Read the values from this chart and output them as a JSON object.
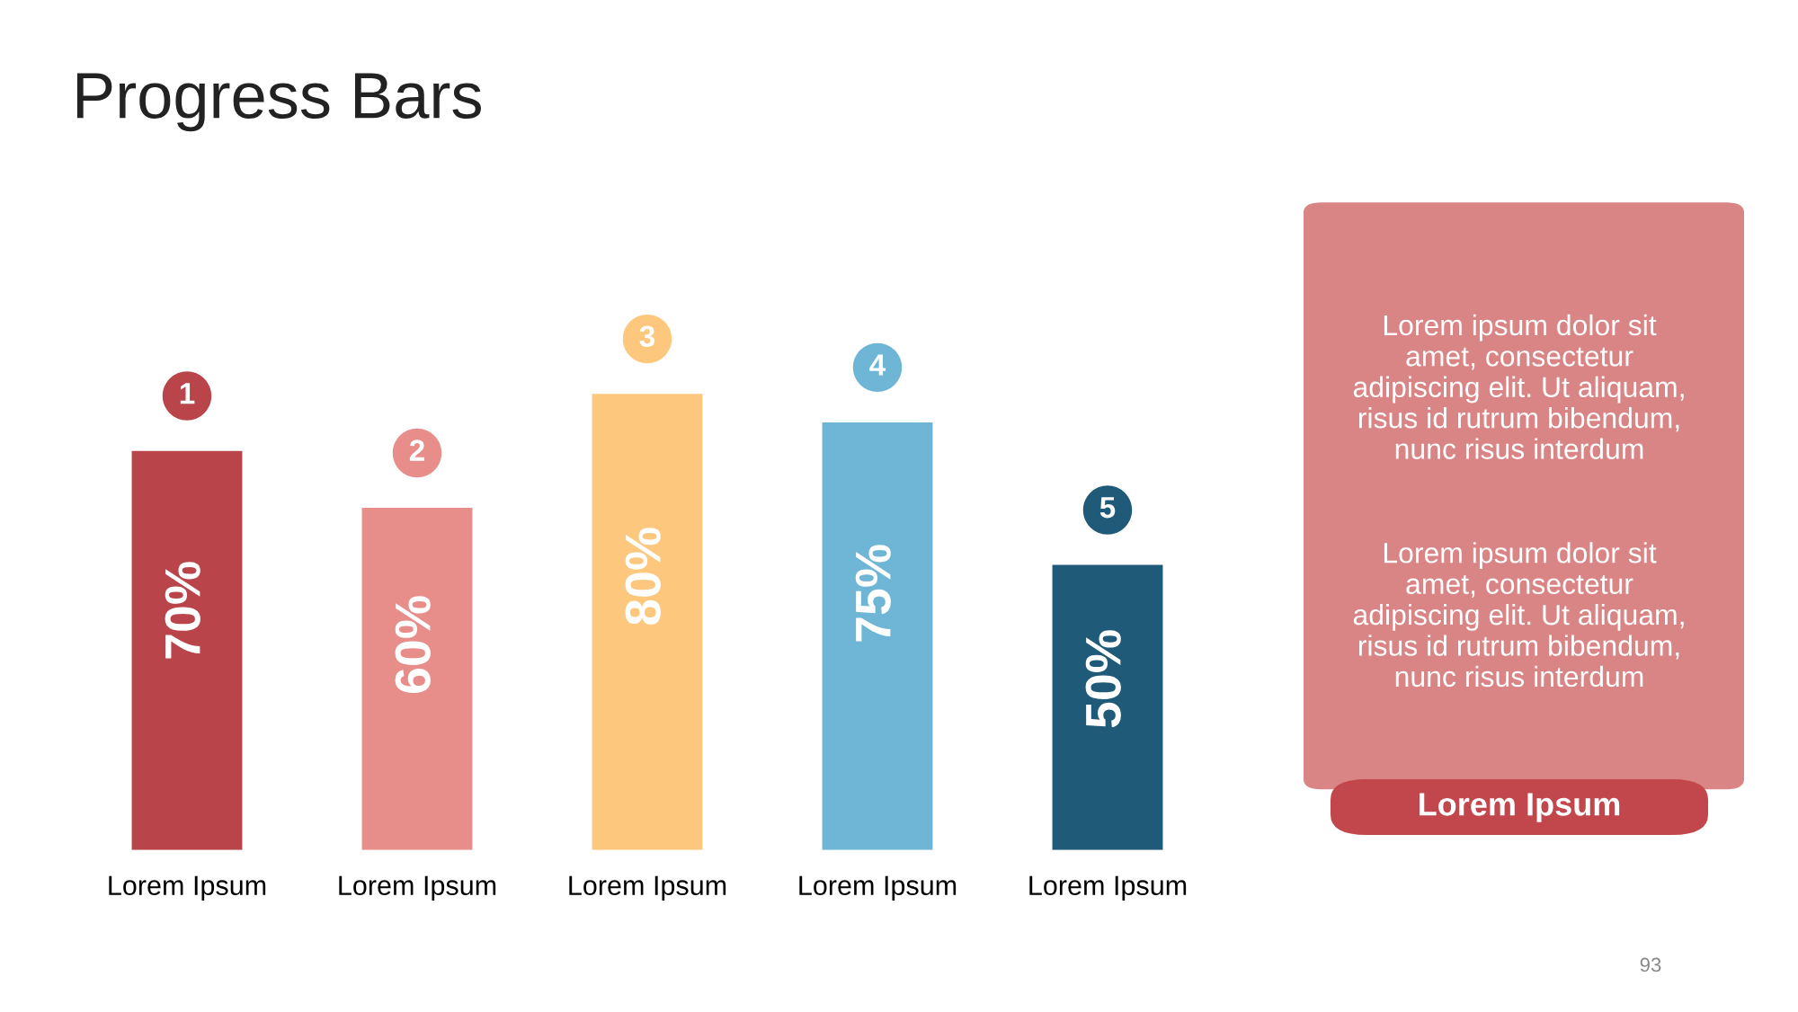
{
  "chart_data": {
    "type": "bar",
    "title": "Progress Bars",
    "categories": [
      "Lorem Ipsum",
      "Lorem Ipsum",
      "Lorem Ipsum",
      "Lorem Ipsum",
      "Lorem Ipsum"
    ],
    "values": [
      70,
      60,
      80,
      75,
      50
    ],
    "colors": [
      "#b9444a",
      "#e88e8a",
      "#fdc87e",
      "#6fb6d6",
      "#1f5a78"
    ],
    "value_labels": [
      "70%",
      "60%",
      "80%",
      "75%",
      "50%"
    ],
    "annotations": [
      "1",
      "2",
      "3",
      "4",
      "5",
      "Lorem ipsum dolor sit\namet, consectetur\nadipiscing elit. Ut aliquam,\nrisus id rutrum bibendum,\nnunc risus interdum",
      "Lorem ipsum dolor sit\namet, consectetur\nadipiscing elit. Ut aliquam,\nrisus id rutrum bibendum,\nnunc risus interdum",
      "Lorem Ipsum",
      "93"
    ],
    "grid": false,
    "legend": false
  }
}
